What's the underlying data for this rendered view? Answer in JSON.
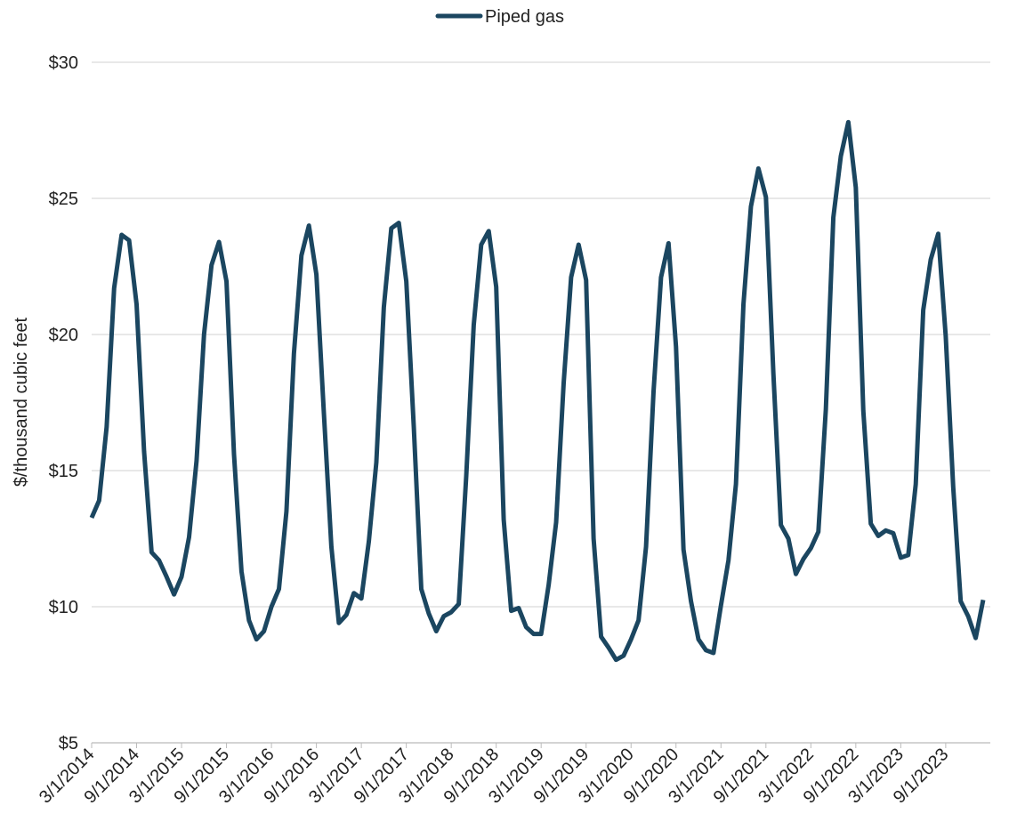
{
  "chart_data": {
    "type": "line",
    "y_label": "$/thousand cubic feet",
    "categories": [
      "3/1/2014",
      null,
      null,
      null,
      null,
      null,
      "9/1/2014",
      null,
      null,
      null,
      null,
      null,
      "3/1/2015",
      null,
      null,
      null,
      null,
      null,
      "9/1/2015",
      null,
      null,
      null,
      null,
      null,
      "3/1/2016",
      null,
      null,
      null,
      null,
      null,
      "9/1/2016",
      null,
      null,
      null,
      null,
      null,
      "3/1/2017",
      null,
      null,
      null,
      null,
      null,
      "9/1/2017",
      null,
      null,
      null,
      null,
      null,
      "3/1/2018",
      null,
      null,
      null,
      null,
      null,
      "9/1/2018",
      null,
      null,
      null,
      null,
      null,
      "3/1/2019",
      null,
      null,
      null,
      null,
      null,
      "9/1/2019",
      null,
      null,
      null,
      null,
      null,
      "3/1/2020",
      null,
      null,
      null,
      null,
      null,
      "9/1/2020",
      null,
      null,
      null,
      null,
      null,
      "3/1/2021",
      null,
      null,
      null,
      null,
      null,
      "9/1/2021",
      null,
      null,
      null,
      null,
      null,
      "3/1/2022",
      null,
      null,
      null,
      null,
      null,
      "9/1/2022",
      null,
      null,
      null,
      null,
      null,
      "3/1/2023",
      null,
      null,
      null,
      null,
      null,
      "9/1/2023",
      null,
      null,
      null,
      null,
      null
    ],
    "series": [
      {
        "name": "Piped gas",
        "color": "#1b4660",
        "values": [
          13.27,
          13.9,
          16.6,
          21.7,
          23.66,
          23.46,
          21.1,
          15.7,
          12.0,
          11.7,
          11.1,
          10.45,
          11.1,
          12.55,
          15.35,
          20.0,
          22.55,
          23.4,
          21.95,
          15.6,
          11.3,
          9.5,
          8.8,
          9.1,
          10.0,
          10.65,
          13.5,
          19.3,
          22.9,
          24.0,
          22.2,
          17.1,
          12.2,
          9.4,
          9.7,
          10.5,
          10.3,
          12.4,
          15.3,
          21.0,
          23.9,
          24.1,
          21.95,
          16.6,
          10.65,
          9.75,
          9.1,
          9.65,
          9.8,
          10.1,
          14.8,
          20.35,
          23.3,
          23.8,
          21.75,
          13.2,
          9.85,
          9.95,
          9.25,
          9.0,
          9.0,
          10.8,
          13.1,
          18.2,
          22.1,
          23.3,
          22.0,
          12.5,
          8.9,
          8.5,
          8.05,
          8.2,
          8.8,
          9.5,
          12.2,
          17.9,
          22.1,
          23.35,
          19.55,
          12.1,
          10.2,
          8.8,
          8.4,
          8.3,
          10.05,
          11.7,
          14.5,
          21.1,
          24.7,
          26.1,
          25.05,
          18.55,
          13.0,
          12.5,
          11.2,
          11.75,
          12.15,
          12.75,
          17.25,
          24.3,
          26.55,
          27.8,
          25.4,
          17.2,
          13.05,
          12.6,
          12.8,
          12.7,
          11.8,
          11.9,
          14.5,
          20.9,
          22.75,
          23.7,
          19.95,
          14.4,
          10.2,
          9.65,
          8.85,
          10.25
        ]
      }
    ],
    "ylim": [
      5,
      30
    ],
    "yticks": [
      {
        "value": 5,
        "label": "$5"
      },
      {
        "value": 10,
        "label": "$10"
      },
      {
        "value": 15,
        "label": "$15"
      },
      {
        "value": 20,
        "label": "$20"
      },
      {
        "value": 25,
        "label": "$25"
      },
      {
        "value": 30,
        "label": "$30"
      }
    ],
    "grid": true,
    "legend": "top"
  }
}
